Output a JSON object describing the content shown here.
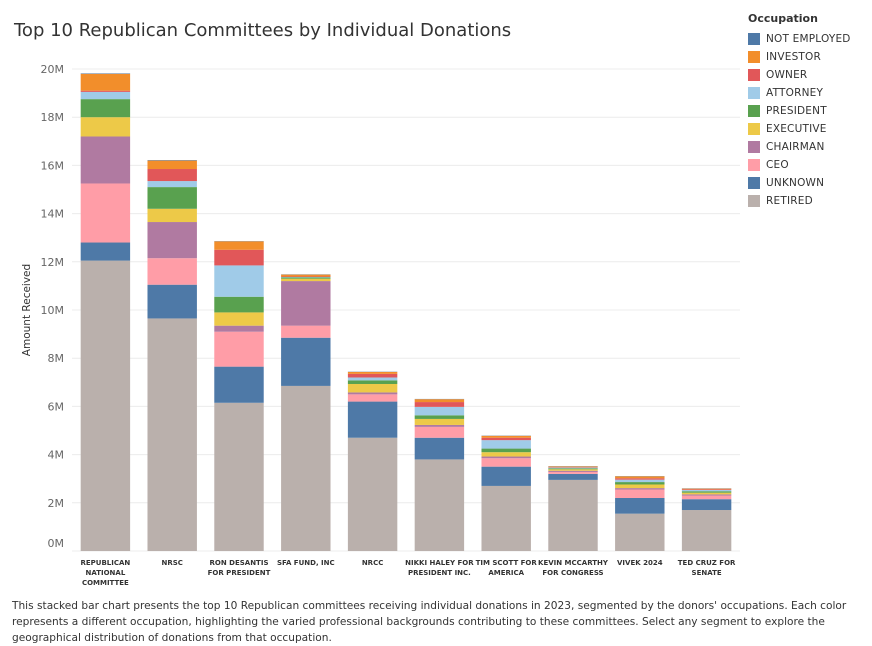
{
  "title": "Top 10 Republican Committees by Individual Donations",
  "description": "This stacked bar chart presents the top 10 Republican committees receiving individual donations in 2023, segmented by the donors' occupations. Each color represents a different occupation, highlighting the varied professional backgrounds contributing to these committees. Select any segment to explore the geographical distribution of donations from that occupation.",
  "chart_data": {
    "type": "bar",
    "stacked": true,
    "title": "Top 10 Republican Committees by Individual Donations",
    "ylabel": "Amount Received",
    "xlabel": "",
    "ylim": [
      0,
      20000000
    ],
    "y_ticks": [
      "0M",
      "2M",
      "4M",
      "6M",
      "8M",
      "10M",
      "12M",
      "14M",
      "16M",
      "18M",
      "20M"
    ],
    "grid": true,
    "legend_title": "Occupation",
    "legend_position": "right",
    "categories": [
      [
        "REPUBLICAN",
        "NATIONAL",
        "COMMITTEE"
      ],
      [
        "NRSC"
      ],
      [
        "RON DESANTIS",
        "FOR PRESIDENT"
      ],
      [
        "SFA FUND, INC"
      ],
      [
        "NRCC"
      ],
      [
        "NIKKI HALEY FOR",
        "PRESIDENT INC."
      ],
      [
        "TIM SCOTT FOR",
        "AMERICA"
      ],
      [
        "KEVIN MCCARTHY",
        "FOR CONGRESS"
      ],
      [
        "VIVEK 2024"
      ],
      [
        "TED CRUZ FOR",
        "SENATE"
      ]
    ],
    "series": [
      {
        "name": "RETIRED",
        "color": "#BAB0AC",
        "values": [
          12050000,
          9650000,
          6150000,
          6850000,
          4700000,
          3800000,
          2700000,
          2950000,
          1550000,
          1700000
        ]
      },
      {
        "name": "UNKNOWN",
        "color": "#4E79A7",
        "values": [
          750000,
          1400000,
          1500000,
          2000000,
          1500000,
          900000,
          800000,
          250000,
          650000,
          450000
        ]
      },
      {
        "name": "CEO",
        "color": "#FF9DA7",
        "values": [
          2450000,
          1100000,
          1450000,
          500000,
          300000,
          450000,
          350000,
          80000,
          350000,
          150000
        ]
      },
      {
        "name": "CHAIRMAN",
        "color": "#B07AA1",
        "values": [
          1950000,
          1500000,
          250000,
          1850000,
          80000,
          80000,
          70000,
          50000,
          60000,
          50000
        ]
      },
      {
        "name": "EXECUTIVE",
        "color": "#EDC948",
        "values": [
          800000,
          550000,
          550000,
          100000,
          350000,
          250000,
          180000,
          60000,
          150000,
          70000
        ]
      },
      {
        "name": "PRESIDENT",
        "color": "#59A14F",
        "values": [
          750000,
          900000,
          650000,
          50000,
          150000,
          150000,
          150000,
          40000,
          100000,
          60000
        ]
      },
      {
        "name": "ATTORNEY",
        "color": "#A0CBE8",
        "values": [
          300000,
          250000,
          1300000,
          20000,
          120000,
          350000,
          350000,
          30000,
          100000,
          50000
        ]
      },
      {
        "name": "OWNER",
        "color": "#E15759",
        "values": [
          50000,
          500000,
          650000,
          20000,
          150000,
          200000,
          100000,
          20000,
          60000,
          30000
        ]
      },
      {
        "name": "INVESTOR",
        "color": "#F28E2B",
        "values": [
          700000,
          350000,
          350000,
          80000,
          80000,
          120000,
          80000,
          30000,
          80000,
          30000
        ]
      },
      {
        "name": "NOT EMPLOYED",
        "color": "#4E79A7",
        "values": [
          20000,
          20000,
          10000,
          10000,
          10000,
          10000,
          10000,
          10000,
          10000,
          10000
        ]
      }
    ],
    "legend_order": [
      "NOT EMPLOYED",
      "INVESTOR",
      "OWNER",
      "ATTORNEY",
      "PRESIDENT",
      "EXECUTIVE",
      "CHAIRMAN",
      "CEO",
      "UNKNOWN",
      "RETIRED"
    ]
  }
}
